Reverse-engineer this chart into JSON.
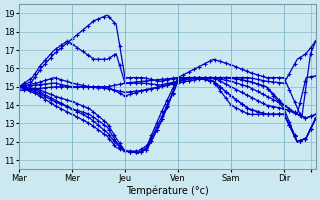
{
  "xlabel": "Température (°c)",
  "bg_color": "#cce8f0",
  "plot_bg_color": "#cce8f0",
  "grid_color": "#88bbcc",
  "line_color": "#0000cc",
  "marker": "+",
  "markersize": 3,
  "linewidth": 0.9,
  "ylim": [
    10.5,
    19.5
  ],
  "yticks": [
    11,
    12,
    13,
    14,
    15,
    16,
    17,
    18,
    19
  ],
  "xtick_positions": [
    0,
    60,
    120,
    180,
    240,
    300,
    330
  ],
  "xtick_labels": [
    "Mar",
    "Mer",
    "Jeu",
    "Ven",
    "Sam",
    "Dir",
    ""
  ],
  "num_steps": 337,
  "lines": [
    {
      "key": "line_up_peak",
      "points": [
        [
          0,
          15.0
        ],
        [
          15,
          15.3
        ],
        [
          25,
          16.0
        ],
        [
          40,
          16.8
        ],
        [
          55,
          17.4
        ],
        [
          70,
          18.0
        ],
        [
          85,
          18.6
        ],
        [
          100,
          18.9
        ],
        [
          110,
          18.4
        ],
        [
          120,
          15.5
        ],
        [
          140,
          15.5
        ],
        [
          160,
          15.3
        ],
        [
          180,
          15.5
        ],
        [
          200,
          16.0
        ],
        [
          220,
          16.5
        ],
        [
          240,
          16.2
        ],
        [
          260,
          15.8
        ],
        [
          280,
          15.5
        ],
        [
          300,
          15.5
        ],
        [
          320,
          13.3
        ],
        [
          330,
          16.8
        ],
        [
          336,
          17.5
        ]
      ]
    },
    {
      "key": "line_up2",
      "points": [
        [
          0,
          15.0
        ],
        [
          15,
          15.5
        ],
        [
          25,
          16.2
        ],
        [
          40,
          17.0
        ],
        [
          55,
          17.5
        ],
        [
          70,
          17.0
        ],
        [
          85,
          16.5
        ],
        [
          100,
          16.5
        ],
        [
          110,
          16.8
        ],
        [
          120,
          15.2
        ],
        [
          140,
          15.2
        ],
        [
          160,
          15.1
        ],
        [
          180,
          15.3
        ],
        [
          200,
          15.5
        ],
        [
          220,
          15.5
        ],
        [
          240,
          15.5
        ],
        [
          260,
          15.5
        ],
        [
          280,
          15.3
        ],
        [
          300,
          15.2
        ],
        [
          315,
          16.5
        ],
        [
          325,
          16.8
        ],
        [
          336,
          17.5
        ]
      ]
    },
    {
      "key": "line_flat1",
      "points": [
        [
          0,
          15.0
        ],
        [
          20,
          15.1
        ],
        [
          40,
          15.2
        ],
        [
          60,
          15.0
        ],
        [
          80,
          15.0
        ],
        [
          100,
          15.0
        ],
        [
          120,
          15.2
        ],
        [
          140,
          15.3
        ],
        [
          160,
          15.4
        ],
        [
          180,
          15.5
        ],
        [
          200,
          15.5
        ],
        [
          220,
          15.5
        ],
        [
          240,
          15.3
        ],
        [
          260,
          15.0
        ],
        [
          280,
          14.5
        ],
        [
          300,
          14.0
        ],
        [
          315,
          13.5
        ],
        [
          325,
          15.5
        ],
        [
          336,
          15.6
        ]
      ]
    },
    {
      "key": "line_down1",
      "points": [
        [
          0,
          15.0
        ],
        [
          20,
          14.9
        ],
        [
          40,
          14.5
        ],
        [
          60,
          14.2
        ],
        [
          80,
          13.8
        ],
        [
          100,
          13.0
        ],
        [
          110,
          12.2
        ],
        [
          120,
          11.5
        ],
        [
          135,
          11.4
        ],
        [
          145,
          11.6
        ],
        [
          160,
          13.0
        ],
        [
          180,
          15.3
        ],
        [
          200,
          15.5
        ],
        [
          220,
          15.5
        ],
        [
          240,
          15.0
        ],
        [
          260,
          14.5
        ],
        [
          280,
          14.0
        ],
        [
          300,
          13.8
        ],
        [
          315,
          12.0
        ],
        [
          325,
          12.2
        ],
        [
          336,
          13.3
        ]
      ]
    },
    {
      "key": "line_down2",
      "points": [
        [
          0,
          15.0
        ],
        [
          20,
          14.8
        ],
        [
          40,
          14.3
        ],
        [
          60,
          13.8
        ],
        [
          80,
          13.3
        ],
        [
          100,
          12.5
        ],
        [
          110,
          11.9
        ],
        [
          120,
          11.5
        ],
        [
          135,
          11.4
        ],
        [
          145,
          11.7
        ],
        [
          160,
          13.2
        ],
        [
          180,
          15.3
        ],
        [
          200,
          15.5
        ],
        [
          220,
          15.3
        ],
        [
          240,
          14.5
        ],
        [
          260,
          13.8
        ],
        [
          280,
          13.5
        ],
        [
          300,
          13.5
        ],
        [
          315,
          12.0
        ],
        [
          325,
          12.2
        ],
        [
          336,
          13.3
        ]
      ]
    },
    {
      "key": "line_down3",
      "points": [
        [
          0,
          15.0
        ],
        [
          20,
          14.6
        ],
        [
          40,
          14.0
        ],
        [
          60,
          13.5
        ],
        [
          80,
          13.0
        ],
        [
          100,
          12.3
        ],
        [
          110,
          11.7
        ],
        [
          120,
          11.5
        ],
        [
          135,
          11.5
        ],
        [
          145,
          11.8
        ],
        [
          160,
          13.5
        ],
        [
          180,
          15.5
        ],
        [
          200,
          15.5
        ],
        [
          220,
          15.3
        ],
        [
          240,
          14.5
        ],
        [
          260,
          13.8
        ],
        [
          280,
          13.5
        ],
        [
          300,
          13.5
        ],
        [
          315,
          12.0
        ],
        [
          325,
          12.2
        ],
        [
          336,
          13.3
        ]
      ]
    },
    {
      "key": "line_mid1",
      "points": [
        [
          0,
          15.0
        ],
        [
          20,
          15.2
        ],
        [
          40,
          15.5
        ],
        [
          60,
          15.2
        ],
        [
          80,
          15.0
        ],
        [
          100,
          15.0
        ],
        [
          120,
          14.5
        ],
        [
          140,
          14.8
        ],
        [
          160,
          15.0
        ],
        [
          180,
          15.3
        ],
        [
          200,
          15.5
        ],
        [
          220,
          15.5
        ],
        [
          240,
          15.5
        ],
        [
          260,
          15.3
        ],
        [
          280,
          15.0
        ],
        [
          300,
          14.0
        ],
        [
          315,
          13.5
        ],
        [
          325,
          13.3
        ],
        [
          336,
          13.5
        ]
      ]
    },
    {
      "key": "line_flat2",
      "points": [
        [
          0,
          14.8
        ],
        [
          20,
          14.9
        ],
        [
          40,
          15.0
        ],
        [
          60,
          15.0
        ],
        [
          80,
          15.0
        ],
        [
          100,
          14.9
        ],
        [
          120,
          14.7
        ],
        [
          140,
          14.8
        ],
        [
          160,
          15.0
        ],
        [
          180,
          15.2
        ],
        [
          200,
          15.4
        ],
        [
          220,
          15.5
        ],
        [
          240,
          15.5
        ],
        [
          260,
          15.3
        ],
        [
          280,
          15.0
        ],
        [
          300,
          13.8
        ],
        [
          315,
          13.5
        ],
        [
          325,
          13.3
        ],
        [
          336,
          13.5
        ]
      ]
    },
    {
      "key": "line_down4",
      "points": [
        [
          0,
          15.0
        ],
        [
          20,
          14.7
        ],
        [
          40,
          14.2
        ],
        [
          60,
          13.8
        ],
        [
          80,
          13.5
        ],
        [
          100,
          12.8
        ],
        [
          110,
          12.0
        ],
        [
          120,
          11.5
        ],
        [
          135,
          11.4
        ],
        [
          145,
          11.6
        ],
        [
          160,
          13.0
        ],
        [
          180,
          15.4
        ],
        [
          200,
          15.5
        ],
        [
          220,
          15.3
        ],
        [
          240,
          14.0
        ],
        [
          260,
          13.5
        ],
        [
          280,
          13.5
        ],
        [
          300,
          13.5
        ],
        [
          315,
          12.0
        ],
        [
          325,
          12.2
        ],
        [
          336,
          13.3
        ]
      ]
    }
  ]
}
